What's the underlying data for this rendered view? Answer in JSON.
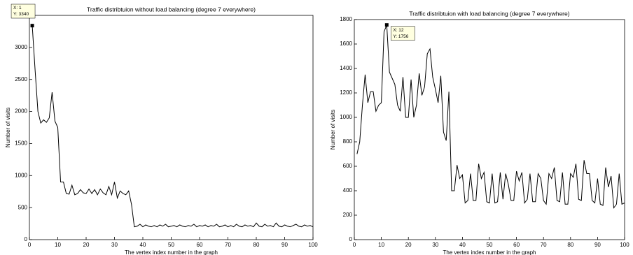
{
  "chart_data": [
    {
      "type": "line",
      "title": "Traffic distribtuion without load balancing (degree 7 everywhere)",
      "x_label": "The vertex index number in the graph",
      "y_label": "Number of visits",
      "datatip": [
        "X: 1",
        "Y: 3340"
      ],
      "xlim": [
        0,
        100
      ],
      "xticks": [
        0,
        10,
        20,
        30,
        40,
        50,
        60,
        70,
        80,
        90,
        100
      ],
      "ylim": [
        0,
        3500
      ],
      "yticks": [
        0,
        500,
        1000,
        1500,
        2000,
        2500,
        3000
      ],
      "x": [
        1,
        2,
        3,
        4,
        5,
        6,
        7,
        8,
        9,
        10,
        11,
        12,
        13,
        14,
        15,
        16,
        17,
        18,
        19,
        20,
        21,
        22,
        23,
        24,
        25,
        26,
        27,
        28,
        29,
        30,
        31,
        32,
        33,
        34,
        35,
        36,
        37,
        38,
        39,
        40,
        41,
        42,
        43,
        44,
        45,
        46,
        47,
        48,
        49,
        50,
        51,
        52,
        53,
        54,
        55,
        56,
        57,
        58,
        59,
        60,
        61,
        62,
        63,
        64,
        65,
        66,
        67,
        68,
        69,
        70,
        71,
        72,
        73,
        74,
        75,
        76,
        77,
        78,
        79,
        80,
        81,
        82,
        83,
        84,
        85,
        86,
        87,
        88,
        89,
        90,
        91,
        92,
        93,
        94,
        95,
        96,
        97,
        98,
        99,
        100
      ],
      "series": [
        {
          "color": "#000000",
          "values": [
            3340,
            2650,
            2000,
            1820,
            1870,
            1830,
            1900,
            2300,
            1850,
            1750,
            900,
            900,
            720,
            710,
            850,
            700,
            720,
            780,
            730,
            720,
            790,
            720,
            780,
            700,
            790,
            730,
            700,
            830,
            700,
            900,
            650,
            760,
            720,
            700,
            760,
            550,
            200,
            210,
            240,
            200,
            230,
            210,
            200,
            220,
            200,
            230,
            210,
            240,
            200,
            210,
            220,
            200,
            230,
            210,
            200,
            220,
            210,
            240,
            200,
            220,
            210,
            230,
            200,
            220,
            210,
            240,
            200,
            210,
            230,
            200,
            220,
            200,
            240,
            210,
            200,
            230,
            210,
            220,
            200,
            260,
            210,
            200,
            240,
            210,
            220,
            200,
            260,
            210,
            200,
            230,
            210,
            200,
            220,
            240,
            210,
            200,
            230,
            210,
            220,
            200
          ]
        }
      ]
    },
    {
      "type": "line",
      "title": "Traffic distribtuion with load balancing (degree 7 everywhere)",
      "x_label": "The vertex index number in the graph",
      "y_label": "Number of visits",
      "datatip": [
        "X: 12",
        "Y: 1756"
      ],
      "xlim": [
        0,
        100
      ],
      "xticks": [
        0,
        10,
        20,
        30,
        40,
        50,
        60,
        70,
        80,
        90,
        100
      ],
      "ylim": [
        0,
        1800
      ],
      "yticks": [
        0,
        200,
        400,
        600,
        800,
        1000,
        1200,
        1400,
        1600,
        1800
      ],
      "x": [
        1,
        2,
        3,
        4,
        5,
        6,
        7,
        8,
        9,
        10,
        11,
        12,
        13,
        14,
        15,
        16,
        17,
        18,
        19,
        20,
        21,
        22,
        23,
        24,
        25,
        26,
        27,
        28,
        29,
        30,
        31,
        32,
        33,
        34,
        35,
        36,
        37,
        38,
        39,
        40,
        41,
        42,
        43,
        44,
        45,
        46,
        47,
        48,
        49,
        50,
        51,
        52,
        53,
        54,
        55,
        56,
        57,
        58,
        59,
        60,
        61,
        62,
        63,
        64,
        65,
        66,
        67,
        68,
        69,
        70,
        71,
        72,
        73,
        74,
        75,
        76,
        77,
        78,
        79,
        80,
        81,
        82,
        83,
        84,
        85,
        86,
        87,
        88,
        89,
        90,
        91,
        92,
        93,
        94,
        95,
        96,
        97,
        98,
        99,
        100
      ],
      "series": [
        {
          "color": "#000000",
          "values": [
            700,
            800,
            1100,
            1350,
            1120,
            1210,
            1210,
            1050,
            1100,
            1120,
            1700,
            1756,
            1370,
            1320,
            1270,
            1100,
            1050,
            1330,
            1000,
            1000,
            1310,
            1000,
            1100,
            1360,
            1180,
            1250,
            1520,
            1560,
            1330,
            1230,
            1120,
            1340,
            880,
            810,
            1210,
            400,
            400,
            610,
            500,
            530,
            300,
            320,
            540,
            320,
            320,
            620,
            500,
            550,
            310,
            300,
            540,
            300,
            310,
            550,
            330,
            540,
            450,
            320,
            320,
            560,
            480,
            550,
            300,
            330,
            540,
            310,
            310,
            540,
            500,
            320,
            290,
            540,
            500,
            590,
            320,
            310,
            550,
            290,
            290,
            540,
            510,
            620,
            330,
            320,
            650,
            540,
            540,
            320,
            300,
            500,
            290,
            280,
            590,
            430,
            520,
            260,
            290,
            540,
            290,
            300
          ]
        }
      ]
    }
  ]
}
